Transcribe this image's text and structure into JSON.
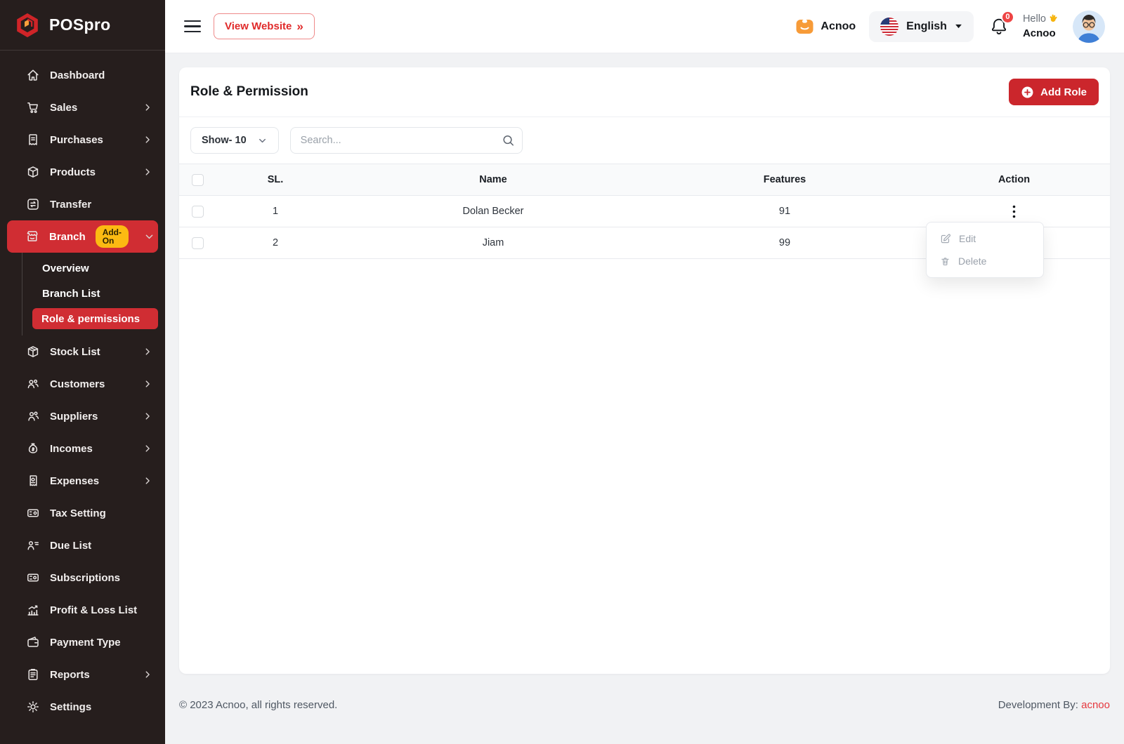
{
  "sidebar": {
    "logo_text": "POSpro",
    "items": [
      {
        "label": "Dashboard",
        "icon": "home",
        "chevron": null
      },
      {
        "label": "Sales",
        "icon": "cart",
        "chevron": "right"
      },
      {
        "label": "Purchases",
        "icon": "purchase-receipt",
        "chevron": "right"
      },
      {
        "label": "Products",
        "icon": "package",
        "chevron": "right"
      },
      {
        "label": "Transfer",
        "icon": "transfer",
        "chevron": null
      },
      {
        "label": "Branch",
        "icon": "storefront",
        "chevron": "down",
        "active": true,
        "badge": "Add-On",
        "children": [
          {
            "label": "Overview",
            "active": false
          },
          {
            "label": "Branch List",
            "active": false
          },
          {
            "label": "Role & permissions",
            "active": true
          }
        ]
      },
      {
        "label": "Stock List",
        "icon": "cube",
        "chevron": "right"
      },
      {
        "label": "Customers",
        "icon": "users",
        "chevron": "right"
      },
      {
        "label": "Suppliers",
        "icon": "user-group",
        "chevron": "right"
      },
      {
        "label": "Incomes",
        "icon": "money-bag",
        "chevron": "right"
      },
      {
        "label": "Expenses",
        "icon": "expense-receipt",
        "chevron": "right"
      },
      {
        "label": "Tax Setting",
        "icon": "tax-ticket",
        "chevron": null
      },
      {
        "label": "Due List",
        "icon": "user-list",
        "chevron": null
      },
      {
        "label": "Subscriptions",
        "icon": "subscription-ticket",
        "chevron": null
      },
      {
        "label": "Profit & Loss List",
        "icon": "chart-growth",
        "chevron": null
      },
      {
        "label": "Payment Type",
        "icon": "wallet",
        "chevron": null
      },
      {
        "label": "Reports",
        "icon": "clipboard",
        "chevron": "right"
      },
      {
        "label": "Settings",
        "icon": "gear",
        "chevron": null
      }
    ]
  },
  "header": {
    "view_website": "View Website",
    "view_website_icon": "double-chevron-right",
    "brand_badge": "Acnoo",
    "language": "English",
    "notification_count": "0",
    "greeting": "Hello",
    "wave_icon": "wave-hand",
    "username": "Acnoo"
  },
  "page": {
    "title": "Role & Permission",
    "add_role_label": "Add Role",
    "show_select_value": "Show- 10",
    "search_placeholder": "Search..."
  },
  "table": {
    "headers": [
      "SL.",
      "Name",
      "Features",
      "Action"
    ],
    "rows": [
      {
        "sl": "1",
        "name": "Dolan Becker",
        "features": "91"
      },
      {
        "sl": "2",
        "name": "Jiam",
        "features": "99"
      }
    ]
  },
  "action_menu": {
    "items": [
      {
        "label": "Edit",
        "icon": "edit"
      },
      {
        "label": "Delete",
        "icon": "trash"
      }
    ]
  },
  "footer": {
    "copyright": "© 2023 Acnoo, all rights reserved.",
    "development_by": "Development By:",
    "development_company": "acnoo"
  },
  "colors": {
    "accent_red": "#d02d33",
    "button_red": "#cb262c",
    "addon_yellow": "#fcba12",
    "badge_red": "#ee4444",
    "sidebar_bg": "#261e1d",
    "page_bg": "#f1f2f4"
  }
}
